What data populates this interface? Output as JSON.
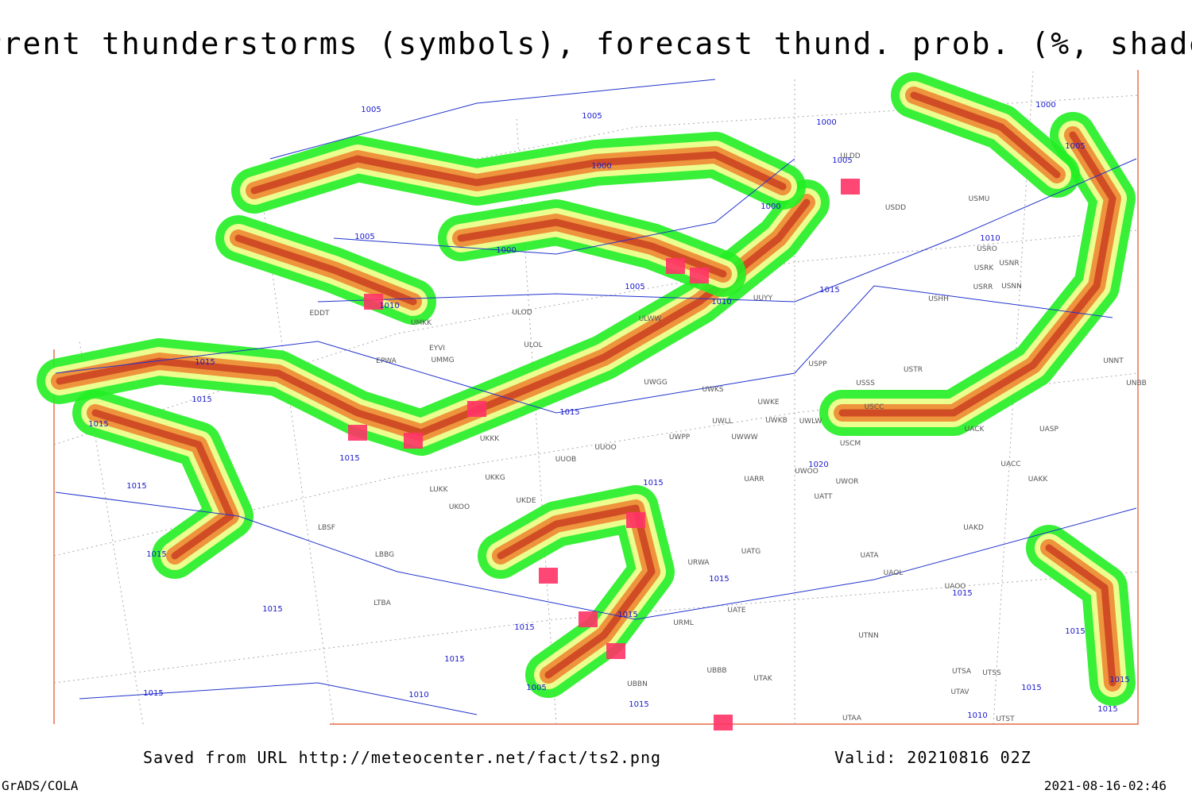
{
  "title": "Current thunderstorms (symbols), forecast thund. prob. (%, shaded)",
  "footer": {
    "saved_from": "Saved from URL http://meteocenter.net/fact/ts2.png",
    "valid": "Valid: 20210816 02Z",
    "credit": "GrADS/COLA",
    "timestamp": "2021-08-16-02:46"
  },
  "isobar_labels": [
    "1005",
    "1005",
    "1000",
    "1000",
    "1000",
    "1005",
    "1000",
    "1005",
    "1005",
    "1000",
    "1010",
    "1005",
    "1010",
    "1010",
    "1015",
    "1015",
    "1015",
    "1015",
    "1015",
    "1015",
    "1020",
    "1015",
    "1015",
    "1015",
    "1015",
    "1015",
    "1015",
    "1015",
    "1015",
    "1015",
    "1015",
    "1015",
    "1015",
    "1015",
    "1010",
    "1005",
    "1015",
    "1010",
    "1015"
  ],
  "stations": [
    "EDDT",
    "UMKK",
    "EPWA",
    "UMMG",
    "EYVI",
    "ULOL",
    "ULOD",
    "UUYY",
    "ULWW",
    "USHH",
    "USRR",
    "USNN",
    "USRK",
    "USNR",
    "USRO",
    "USMU",
    "USDD",
    "ULDD",
    "USPP",
    "USTR",
    "USSS",
    "USCC",
    "UWKE",
    "UWKS",
    "UWGG",
    "UWKB",
    "UWLW",
    "UWLL",
    "UWWW",
    "UWPP",
    "USCM",
    "UACK",
    "UASP",
    "UNNT",
    "UNBB",
    "UACC",
    "UAKK",
    "UARR",
    "UWOO",
    "UWOR",
    "UATT",
    "UAKD",
    "UATG",
    "UATA",
    "UAOL",
    "UAOO",
    "URWA",
    "UATE",
    "URML",
    "UTNN",
    "UBBB",
    "UTAK",
    "UTSA",
    "UTSS",
    "UTAV",
    "UTAA",
    "UTST",
    "LUKK",
    "UKOO",
    "UKDE",
    "UKKG",
    "UUOB",
    "UUOO",
    "LBSF",
    "LBBG",
    "LTBA",
    "UBBN",
    "UKKK"
  ]
}
